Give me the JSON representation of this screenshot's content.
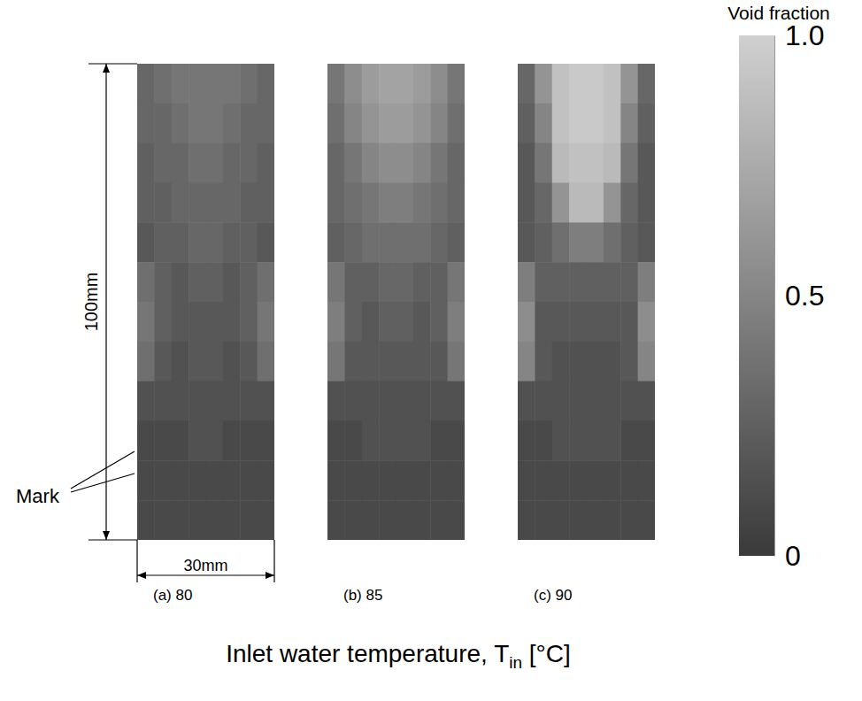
{
  "chart_data": {
    "type": "heatmap",
    "xlabel": {
      "text": "Inlet water temperature, ",
      "symbol": "T",
      "subscript": "in",
      "unit": " [°C]"
    },
    "height_label": "100mm",
    "width_label": "30mm",
    "mark_label": "Mark",
    "colorbar": {
      "title": "Void fraction",
      "range": [
        0,
        1
      ],
      "ticks": [
        0,
        0.5,
        {
          "value": 1,
          "label": "1.0"
        }
      ]
    },
    "panels": [
      {
        "label": "(a) 80",
        "cells": [
          [
            0.3,
            0.35,
            0.4,
            0.4,
            0.4,
            0.4,
            0.35,
            0.3
          ],
          [
            0.3,
            0.3,
            0.35,
            0.4,
            0.4,
            0.35,
            0.3,
            0.3
          ],
          [
            0.25,
            0.3,
            0.3,
            0.35,
            0.35,
            0.3,
            0.3,
            0.25
          ],
          [
            0.25,
            0.25,
            0.3,
            0.3,
            0.3,
            0.3,
            0.25,
            0.25
          ],
          [
            0.2,
            0.25,
            0.25,
            0.3,
            0.3,
            0.25,
            0.25,
            0.2
          ],
          [
            0.35,
            0.25,
            0.2,
            0.25,
            0.25,
            0.2,
            0.25,
            0.35
          ],
          [
            0.4,
            0.25,
            0.2,
            0.2,
            0.2,
            0.2,
            0.25,
            0.4
          ],
          [
            0.35,
            0.2,
            0.15,
            0.2,
            0.2,
            0.15,
            0.2,
            0.35
          ],
          [
            0.15,
            0.15,
            0.15,
            0.15,
            0.15,
            0.15,
            0.15,
            0.15
          ],
          [
            0.1,
            0.1,
            0.1,
            0.15,
            0.15,
            0.1,
            0.1,
            0.1
          ],
          [
            0.1,
            0.1,
            0.1,
            0.1,
            0.1,
            0.1,
            0.1,
            0.1
          ],
          [
            0.1,
            0.1,
            0.1,
            0.1,
            0.1,
            0.1,
            0.1,
            0.1
          ]
        ]
      },
      {
        "label": "(b) 85",
        "cells": [
          [
            0.4,
            0.55,
            0.65,
            0.7,
            0.7,
            0.65,
            0.55,
            0.4
          ],
          [
            0.35,
            0.5,
            0.6,
            0.65,
            0.65,
            0.6,
            0.5,
            0.35
          ],
          [
            0.3,
            0.4,
            0.5,
            0.55,
            0.55,
            0.5,
            0.4,
            0.3
          ],
          [
            0.3,
            0.35,
            0.4,
            0.45,
            0.45,
            0.4,
            0.35,
            0.3
          ],
          [
            0.25,
            0.3,
            0.35,
            0.35,
            0.35,
            0.35,
            0.3,
            0.25
          ],
          [
            0.4,
            0.25,
            0.25,
            0.3,
            0.3,
            0.25,
            0.25,
            0.4
          ],
          [
            0.45,
            0.25,
            0.2,
            0.25,
            0.25,
            0.2,
            0.25,
            0.45
          ],
          [
            0.4,
            0.2,
            0.2,
            0.2,
            0.2,
            0.2,
            0.2,
            0.4
          ],
          [
            0.15,
            0.15,
            0.15,
            0.15,
            0.15,
            0.15,
            0.15,
            0.15
          ],
          [
            0.1,
            0.1,
            0.15,
            0.15,
            0.15,
            0.15,
            0.1,
            0.1
          ],
          [
            0.1,
            0.1,
            0.1,
            0.1,
            0.1,
            0.1,
            0.1,
            0.1
          ],
          [
            0.1,
            0.1,
            0.1,
            0.1,
            0.1,
            0.1,
            0.1,
            0.1
          ]
        ]
      },
      {
        "label": "(c) 90",
        "cells": [
          [
            0.3,
            0.6,
            0.9,
            0.95,
            0.95,
            0.9,
            0.6,
            0.3
          ],
          [
            0.25,
            0.5,
            0.9,
            0.95,
            0.95,
            0.9,
            0.5,
            0.25
          ],
          [
            0.2,
            0.4,
            0.85,
            0.9,
            0.9,
            0.85,
            0.4,
            0.2
          ],
          [
            0.2,
            0.3,
            0.6,
            0.85,
            0.85,
            0.6,
            0.3,
            0.2
          ],
          [
            0.2,
            0.25,
            0.35,
            0.45,
            0.45,
            0.35,
            0.25,
            0.2
          ],
          [
            0.45,
            0.25,
            0.25,
            0.25,
            0.25,
            0.25,
            0.25,
            0.45
          ],
          [
            0.55,
            0.2,
            0.2,
            0.2,
            0.2,
            0.2,
            0.2,
            0.55
          ],
          [
            0.5,
            0.2,
            0.15,
            0.15,
            0.15,
            0.15,
            0.2,
            0.5
          ],
          [
            0.15,
            0.15,
            0.15,
            0.15,
            0.15,
            0.15,
            0.15,
            0.15
          ],
          [
            0.1,
            0.1,
            0.15,
            0.15,
            0.15,
            0.15,
            0.1,
            0.1
          ],
          [
            0.1,
            0.1,
            0.1,
            0.1,
            0.1,
            0.1,
            0.1,
            0.1
          ],
          [
            0.1,
            0.1,
            0.1,
            0.1,
            0.1,
            0.1,
            0.1,
            0.1
          ]
        ]
      }
    ]
  }
}
